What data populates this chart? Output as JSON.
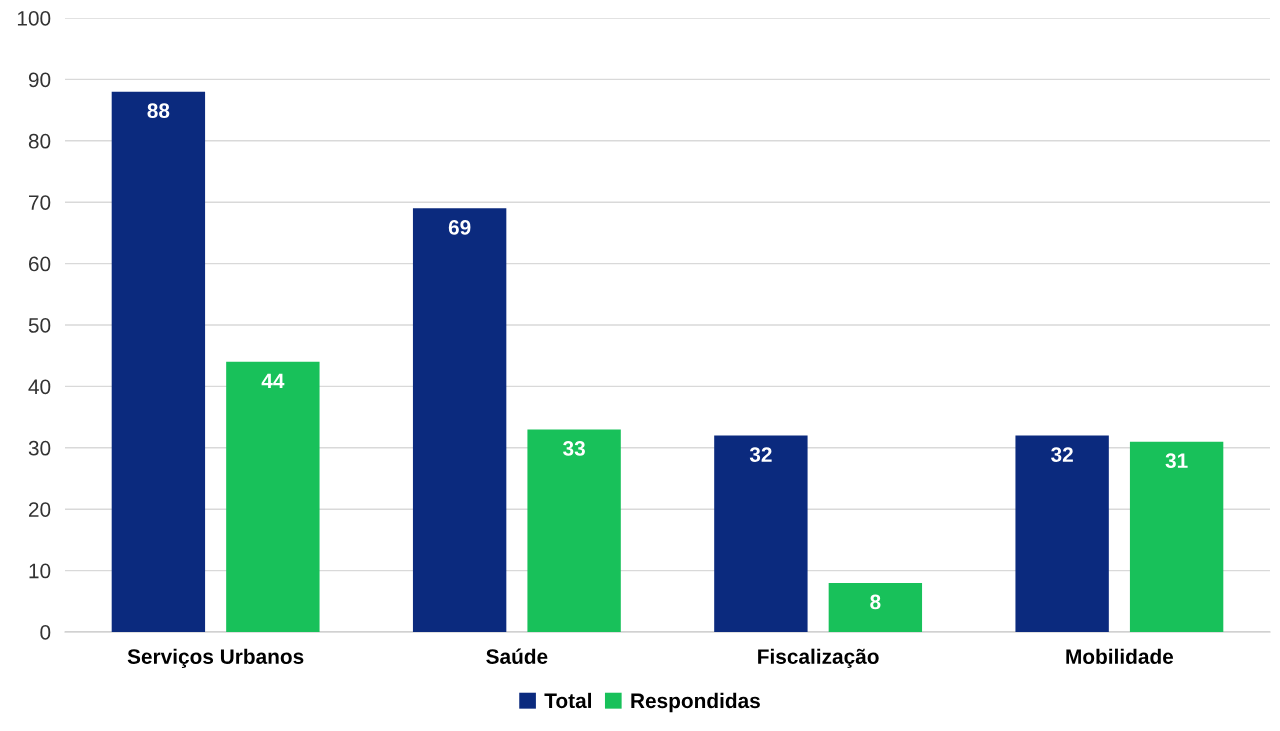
{
  "chart_data": {
    "type": "bar",
    "categories": [
      "Serviços Urbanos",
      "Saúde",
      "Fiscalização",
      "Mobilidade"
    ],
    "series": [
      {
        "name": "Total",
        "color": "#0b2a7e",
        "values": [
          88,
          69,
          32,
          32
        ]
      },
      {
        "name": "Respondidas",
        "color": "#18c15a",
        "values": [
          44,
          33,
          8,
          31
        ]
      }
    ],
    "ylim": [
      0,
      100
    ],
    "yticks": [
      0,
      10,
      20,
      30,
      40,
      50,
      60,
      70,
      80,
      90,
      100
    ],
    "grid": "y",
    "legend": "bottom",
    "data_labels": true
  }
}
